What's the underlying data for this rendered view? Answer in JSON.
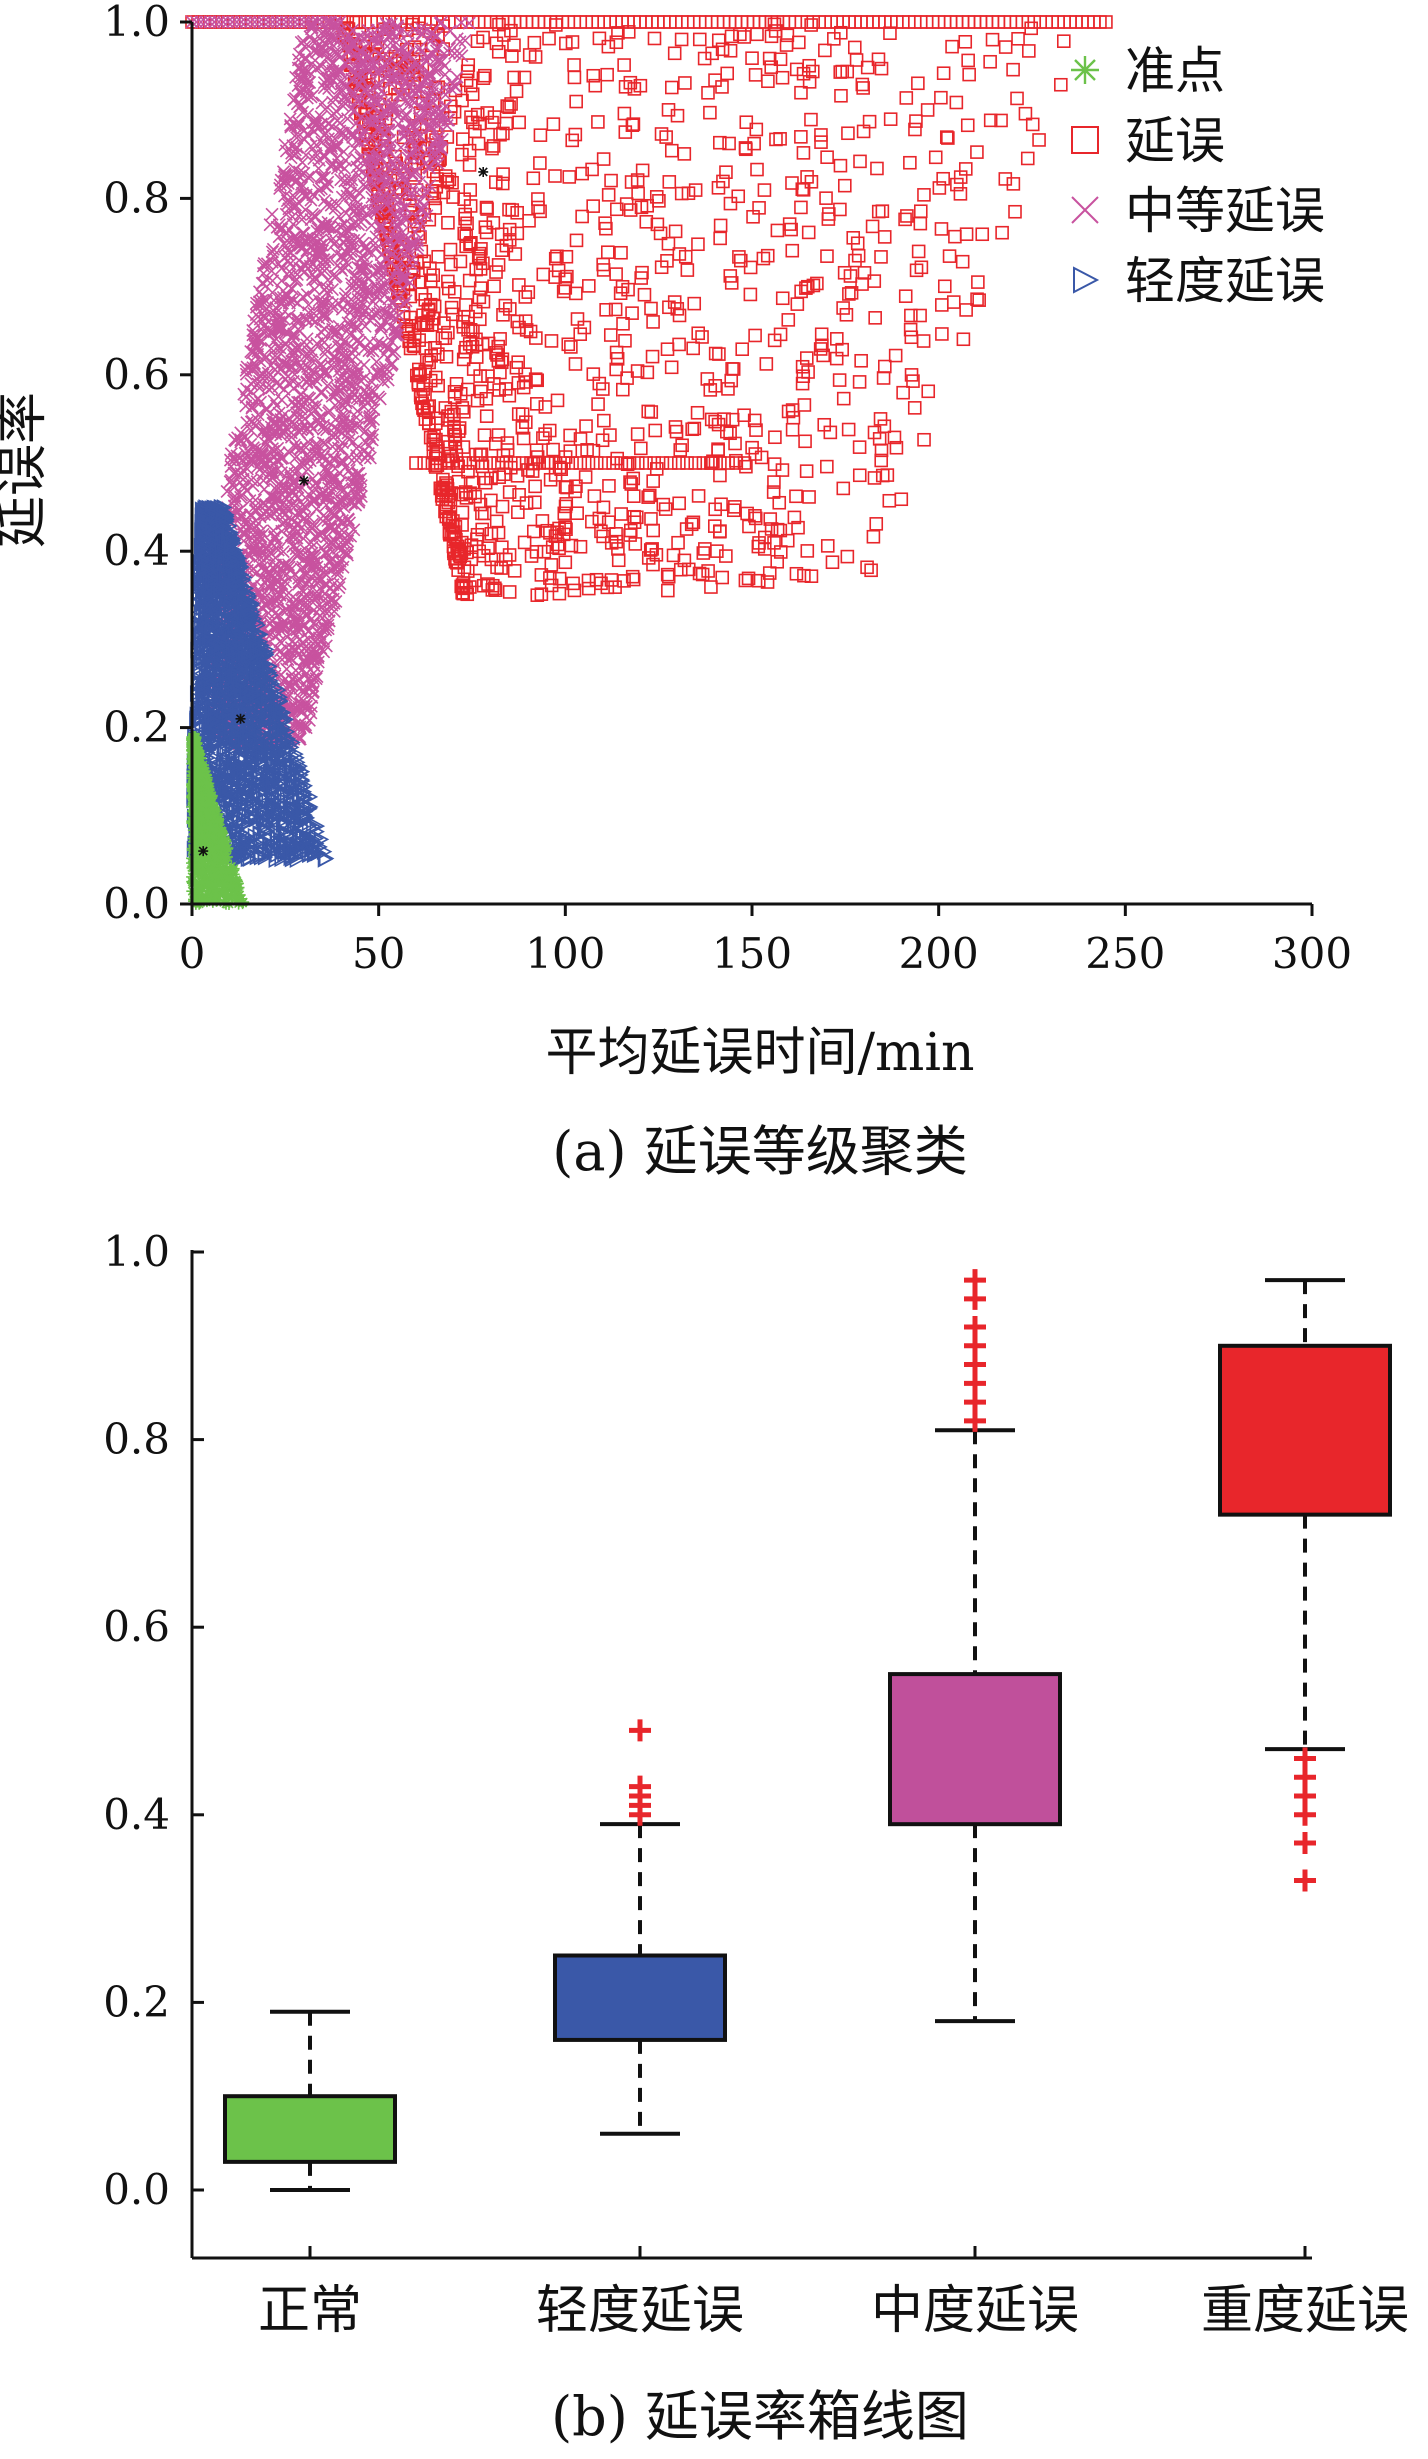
{
  "chart_data": [
    {
      "type": "scatter",
      "caption": "(a) 延误等级聚类",
      "xlabel": "平均延误时间/min",
      "ylabel": "延误率",
      "xlim": [
        0,
        300
      ],
      "ylim": [
        0,
        1.0
      ],
      "xticks": [
        "0",
        "50",
        "100",
        "150",
        "200",
        "250",
        "300"
      ],
      "yticks": [
        "0.0",
        "0.2",
        "0.4",
        "0.6",
        "0.8",
        "1.0"
      ],
      "legend": {
        "placement": "top-right"
      },
      "series": [
        {
          "name": "准点",
          "marker": "asterisk",
          "color": "#6cc24a",
          "centroid": [
            3,
            0.06
          ],
          "x_range": [
            0,
            15
          ],
          "y_range": [
            0.0,
            0.2
          ]
        },
        {
          "name": "延误",
          "marker": "square",
          "color": "#e8262b",
          "centroid": [
            78,
            0.83
          ],
          "x_range": [
            40,
            250
          ],
          "y_range": [
            0.33,
            1.0
          ]
        },
        {
          "name": "中等延误",
          "marker": "x",
          "color": "#c8529f",
          "centroid": [
            30,
            0.48
          ],
          "x_range": [
            8,
            65
          ],
          "y_range": [
            0.2,
            1.0
          ]
        },
        {
          "name": "轻度延误",
          "marker": "triangle-right",
          "color": "#3a58a8",
          "centroid": [
            13,
            0.21
          ],
          "x_range": [
            0,
            45
          ],
          "y_range": [
            0.05,
            0.5
          ]
        }
      ]
    },
    {
      "type": "box",
      "caption": "(b) 延误率箱线图",
      "ylim": [
        0,
        1.0
      ],
      "yticks": [
        "0.0",
        "0.2",
        "0.4",
        "0.6",
        "0.8",
        "1.0"
      ],
      "categories": [
        "正常",
        "轻度延误",
        "中度延误",
        "重度延误"
      ],
      "boxes": [
        {
          "category": "正常",
          "color": "#6cc24a",
          "whisker_low": 0.0,
          "q1": 0.03,
          "q3": 0.1,
          "whisker_high": 0.19,
          "outliers": []
        },
        {
          "category": "轻度延误",
          "color": "#3a58a8",
          "whisker_low": 0.06,
          "q1": 0.16,
          "q3": 0.25,
          "whisker_high": 0.39,
          "outliers": [
            0.4,
            0.41,
            0.42,
            0.43,
            0.49
          ]
        },
        {
          "category": "中度延误",
          "color": "#c0509b",
          "whisker_low": 0.18,
          "q1": 0.39,
          "q3": 0.55,
          "whisker_high": 0.81,
          "outliers": [
            0.82,
            0.84,
            0.86,
            0.88,
            0.9,
            0.92,
            0.95,
            0.97
          ]
        },
        {
          "category": "重度延误",
          "color": "#e8262b",
          "whisker_low": 0.47,
          "q1": 0.72,
          "q3": 0.9,
          "whisker_high": 0.97,
          "outliers": [
            0.33,
            0.37,
            0.4,
            0.42,
            0.44,
            0.46
          ]
        }
      ]
    }
  ]
}
